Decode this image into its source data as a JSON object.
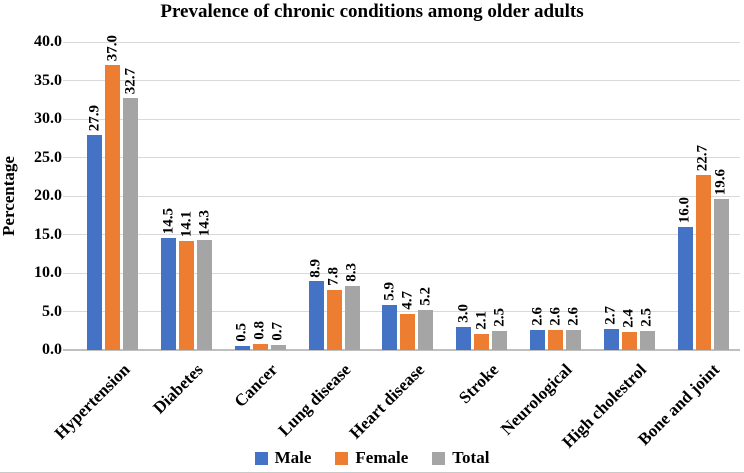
{
  "chart_data": {
    "type": "bar",
    "title": "Prevalence of chronic conditions among older adults",
    "ylabel": "Percentage",
    "xlabel": "",
    "categories": [
      "Hypertension",
      "Diabetes",
      "Cancer",
      "Lung disease",
      "Heart disease",
      "Stroke",
      "Neurological",
      "High cholestrol",
      "Bone and joint"
    ],
    "series": [
      {
        "name": "Male",
        "color": "#4472C4",
        "values": [
          27.9,
          14.5,
          0.5,
          8.9,
          5.9,
          3.0,
          2.6,
          2.7,
          16.0
        ]
      },
      {
        "name": "Female",
        "color": "#ED7D31",
        "values": [
          37.0,
          14.1,
          0.8,
          7.8,
          4.7,
          2.1,
          2.6,
          2.4,
          22.7
        ]
      },
      {
        "name": "Total",
        "color": "#A5A5A5",
        "values": [
          32.7,
          14.3,
          0.7,
          8.3,
          5.2,
          2.5,
          2.6,
          2.5,
          19.6
        ]
      }
    ],
    "ylim": [
      0,
      40
    ],
    "yticks": [
      0,
      5,
      10,
      15,
      20,
      25,
      30,
      35,
      40
    ],
    "ytick_labels": [
      "0.0",
      "5.0",
      "10.0",
      "15.0",
      "20.0",
      "25.0",
      "30.0",
      "35.0",
      "40.0"
    ],
    "value_label_decimals": 1,
    "grid": true,
    "legend_position": "bottom"
  },
  "colors": {
    "gridline": "#D9D9D9",
    "axis_line": "#BFBFBF",
    "bottom_rule": "#C9C9C9",
    "text": "#000000",
    "background": "#FFFFFF"
  }
}
